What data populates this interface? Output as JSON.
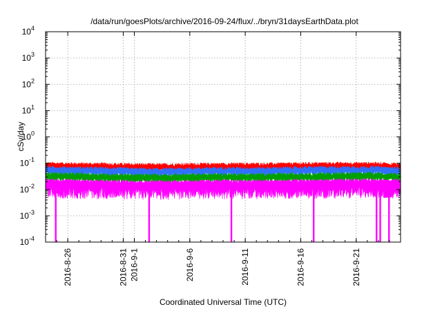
{
  "chart_data": {
    "type": "line",
    "title": "/data/run/goesPlots/archive/2016-09-24/flux/../bryn/31daysEarthData.plot",
    "xlabel": "Coordinated Universal Time (UTC)",
    "ylabel": "cSv/day",
    "yscale": "log",
    "ylim": [
      0.0001,
      10000
    ],
    "xlim": [
      "2016-08-24",
      "2016-09-25"
    ],
    "y_ticks": [
      {
        "base": "10",
        "exp": "-4",
        "value": 0.0001
      },
      {
        "base": "10",
        "exp": "-3",
        "value": 0.001
      },
      {
        "base": "10",
        "exp": "-2",
        "value": 0.01
      },
      {
        "base": "10",
        "exp": "-1",
        "value": 0.1
      },
      {
        "base": "10",
        "exp": "0",
        "value": 1
      },
      {
        "base": "10",
        "exp": "1",
        "value": 10
      },
      {
        "base": "10",
        "exp": "2",
        "value": 100
      },
      {
        "base": "10",
        "exp": "3",
        "value": 1000
      },
      {
        "base": "10",
        "exp": "4",
        "value": 10000
      }
    ],
    "x_ticks": [
      {
        "label": "2016-8-26",
        "date": "2016-08-26"
      },
      {
        "label": "2016-8-31",
        "date": "2016-08-31"
      },
      {
        "label": "2016-9-1",
        "date": "2016-09-01"
      },
      {
        "label": "2016-9-6",
        "date": "2016-09-06"
      },
      {
        "label": "2016-9-11",
        "date": "2016-09-11"
      },
      {
        "label": "2016-9-16",
        "date": "2016-09-16"
      },
      {
        "label": "2016-9-21",
        "date": "2016-09-21"
      }
    ],
    "grid": true,
    "series": [
      {
        "color": "#ff0000",
        "x": [
          "2016-08-24",
          "2016-08-29",
          "2016-09-03",
          "2016-09-08",
          "2016-09-13",
          "2016-09-18",
          "2016-09-23",
          "2016-09-25"
        ],
        "y": [
          0.085,
          0.08,
          0.075,
          0.08,
          0.08,
          0.085,
          0.085,
          0.08
        ]
      },
      {
        "color": "#3070ff",
        "x": [
          "2016-08-24",
          "2016-08-29",
          "2016-09-03",
          "2016-09-08",
          "2016-09-13",
          "2016-09-18",
          "2016-09-23",
          "2016-09-25"
        ],
        "y": [
          0.06,
          0.055,
          0.05,
          0.055,
          0.055,
          0.06,
          0.06,
          0.055
        ]
      },
      {
        "color": "#00a000",
        "x": [
          "2016-08-24",
          "2016-08-29",
          "2016-09-03",
          "2016-09-08",
          "2016-09-13",
          "2016-09-18",
          "2016-09-23",
          "2016-09-25"
        ],
        "y": [
          0.035,
          0.032,
          0.03,
          0.032,
          0.032,
          0.034,
          0.035,
          0.033
        ]
      },
      {
        "color": "#ff00ff",
        "x": [
          "2016-08-24",
          "2016-08-29",
          "2016-09-03",
          "2016-09-08",
          "2016-09-13",
          "2016-09-18",
          "2016-09-23",
          "2016-09-25"
        ],
        "y": [
          0.02,
          0.018,
          0.017,
          0.018,
          0.018,
          0.019,
          0.02,
          0.019
        ]
      }
    ],
    "dropouts": [
      "2016-08-24T22:00",
      "2016-09-02T08:00",
      "2016-09-09T18:00",
      "2016-09-17T04:00",
      "2016-09-22T20:00",
      "2016-09-23T04:00",
      "2016-09-23T23:00"
    ],
    "data_gap": {
      "from": "2016-09-23T12:00",
      "to": "2016-09-24T04:00"
    }
  }
}
